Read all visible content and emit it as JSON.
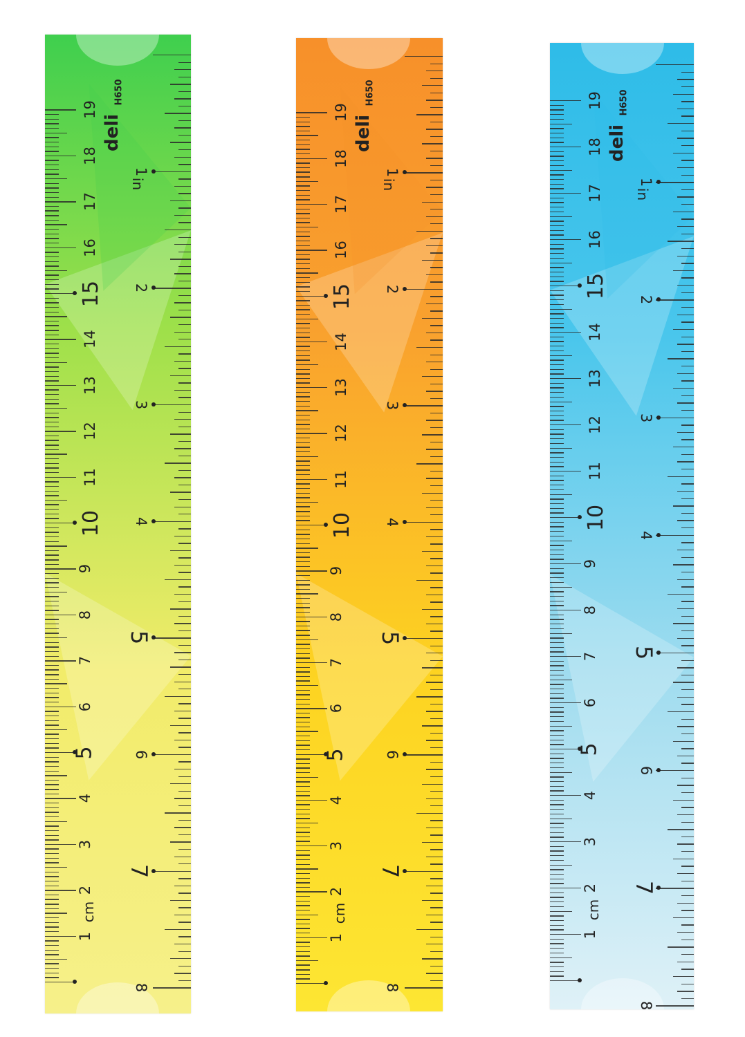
{
  "brand": "deli",
  "model": "H650",
  "cm_unit": "cm",
  "in_unit": "in",
  "cm_numbers": [
    "1",
    "2",
    "3",
    "4",
    "5",
    "6",
    "7",
    "8",
    "9",
    "10",
    "11",
    "12",
    "13",
    "14",
    "15",
    "16",
    "17",
    "18",
    "19"
  ],
  "in_numbers": [
    "1",
    "2",
    "3",
    "4",
    "5",
    "6",
    "7",
    "8"
  ],
  "rulers": [
    {
      "name": "green",
      "colors": [
        "#3fcf4e",
        "#9ee04a",
        "#f2ec6a",
        "#f6f08a"
      ]
    },
    {
      "name": "orange",
      "colors": [
        "#f7902a",
        "#f9a12e",
        "#fdd321",
        "#fde633"
      ]
    },
    {
      "name": "blue",
      "colors": [
        "#2ebce8",
        "#49c6ec",
        "#9fdcef",
        "#dff1f7"
      ]
    }
  ]
}
